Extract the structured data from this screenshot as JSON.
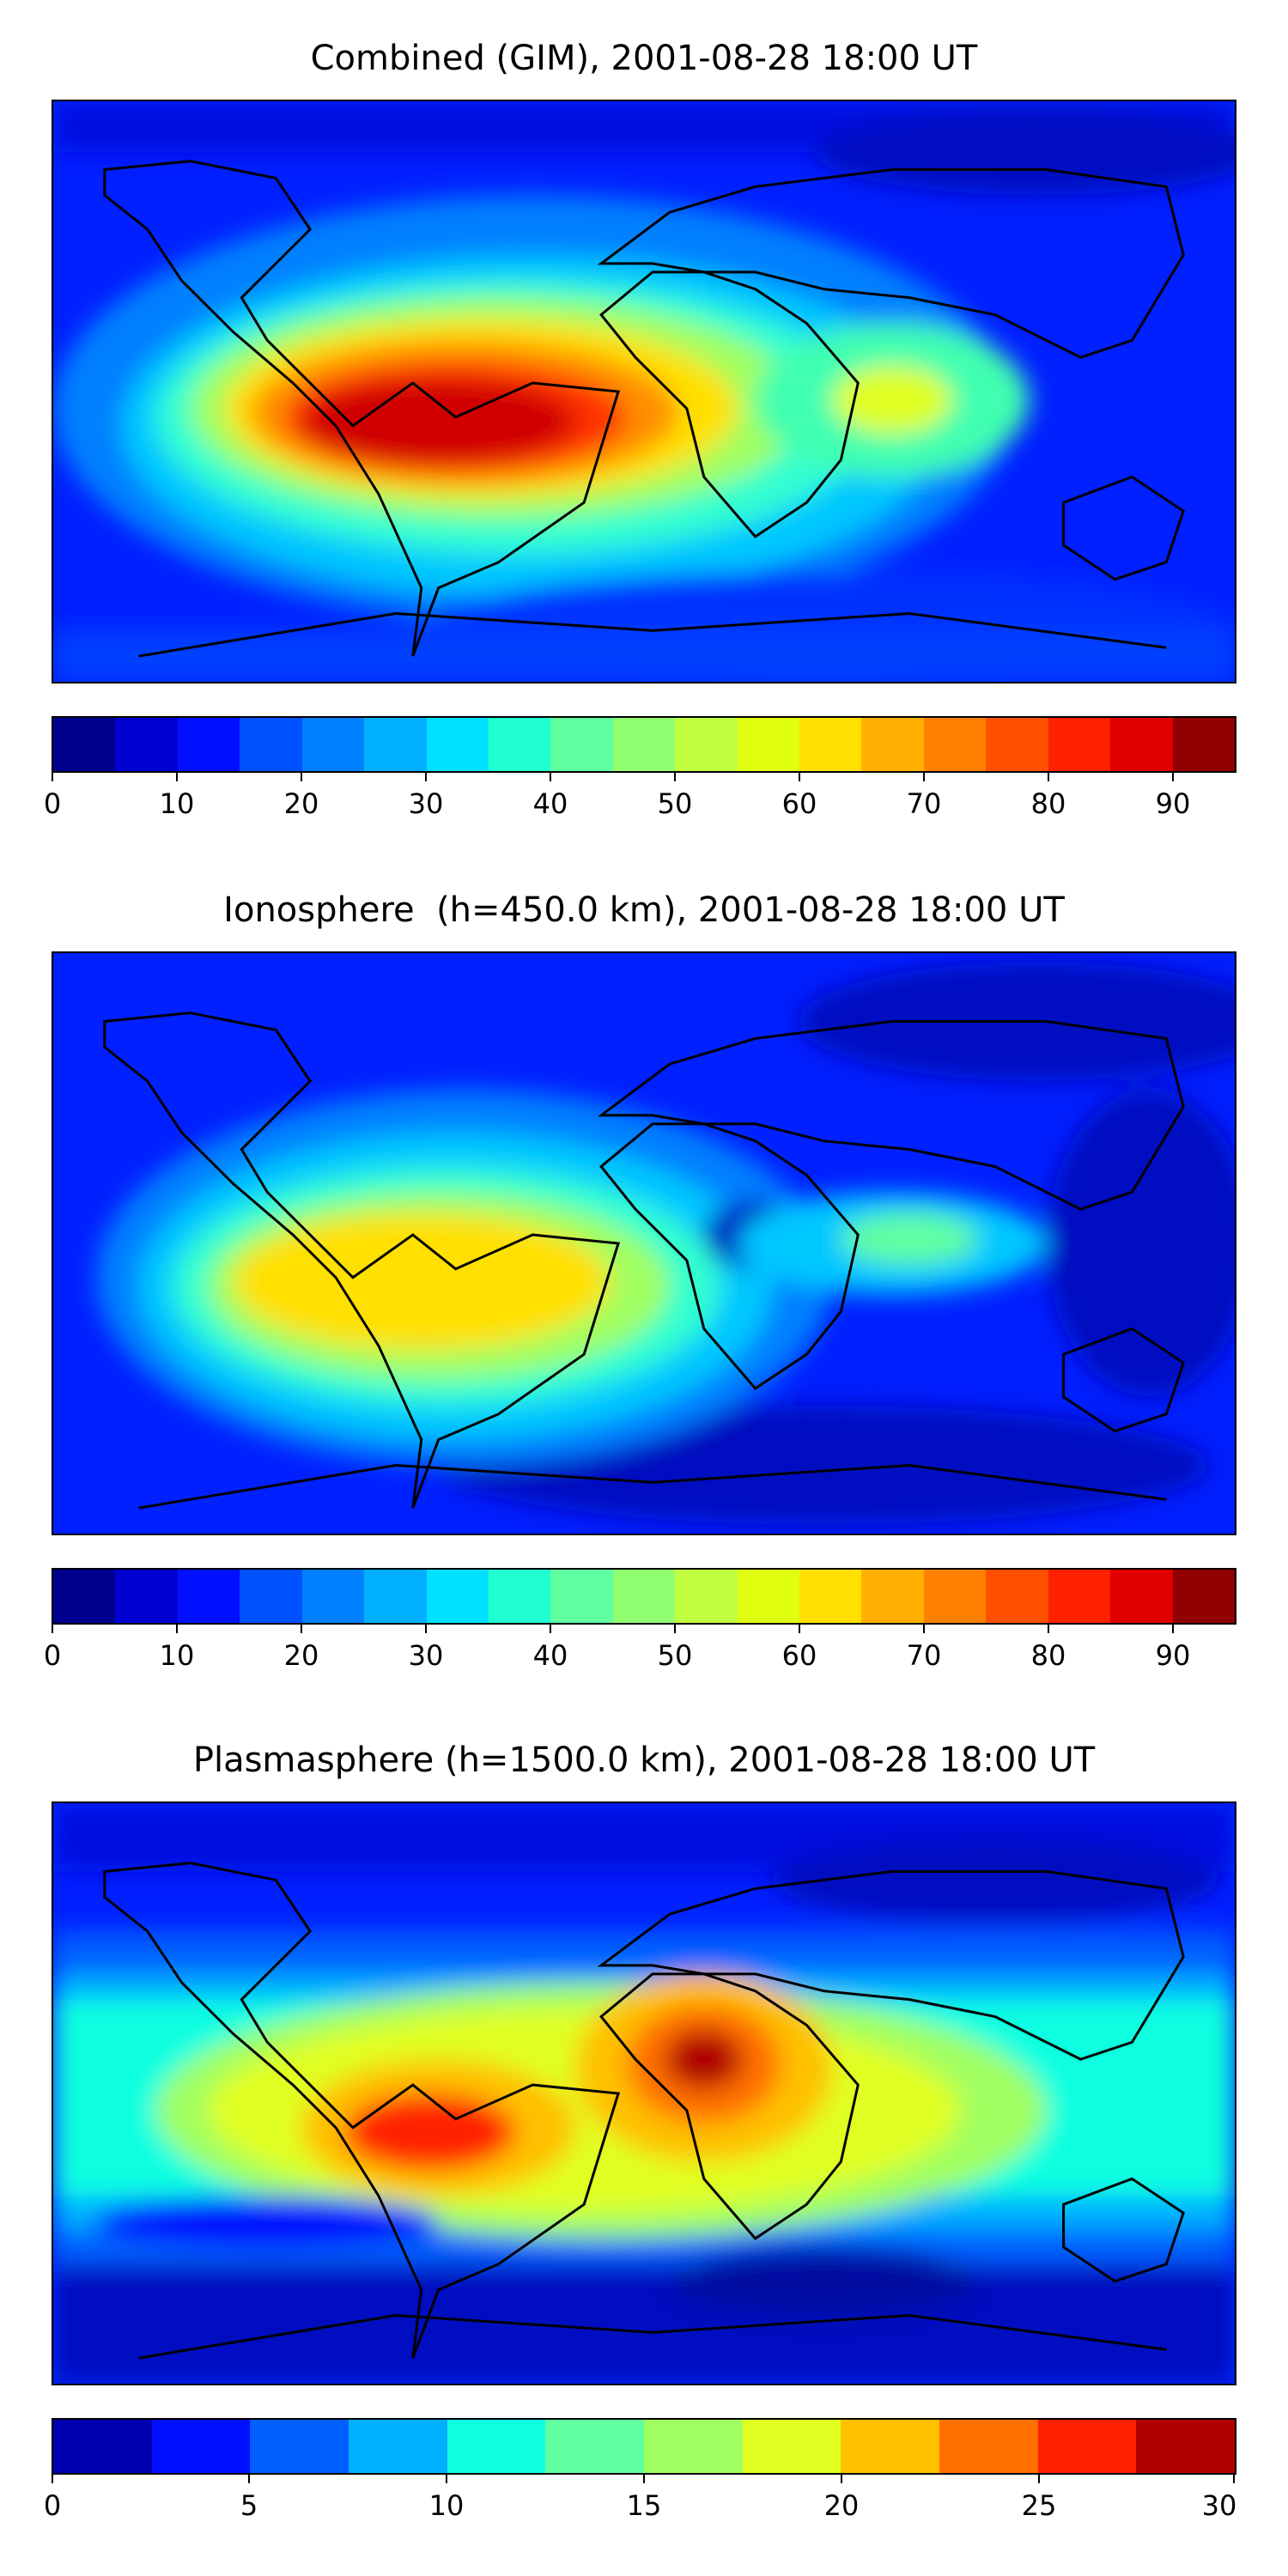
{
  "panels": [
    {
      "title": "Combined (GIM), 2001-08-28 18:00 UT",
      "colorbar": {
        "min": 0,
        "max": 95,
        "colors": [
          "#00008f",
          "#0000d0",
          "#0010ff",
          "#0050ff",
          "#0080ff",
          "#00b0ff",
          "#00e0ff",
          "#20ffd0",
          "#60ffa0",
          "#90ff70",
          "#c0ff40",
          "#e0ff10",
          "#ffe000",
          "#ffb000",
          "#ff8000",
          "#ff5000",
          "#ff2000",
          "#e00000",
          "#900000"
        ],
        "ticks": [
          "0",
          "10",
          "20",
          "30",
          "40",
          "50",
          "60",
          "70",
          "80",
          "90"
        ]
      }
    },
    {
      "title": "Ionosphere  (h=450.0 km), 2001-08-28 18:00 UT",
      "colorbar": {
        "min": 0,
        "max": 95,
        "colors": [
          "#00008f",
          "#0000d0",
          "#0010ff",
          "#0050ff",
          "#0080ff",
          "#00b0ff",
          "#00e0ff",
          "#20ffd0",
          "#60ffa0",
          "#90ff70",
          "#c0ff40",
          "#e0ff10",
          "#ffe000",
          "#ffb000",
          "#ff8000",
          "#ff5000",
          "#ff2000",
          "#e00000",
          "#900000"
        ],
        "ticks": [
          "0",
          "10",
          "20",
          "30",
          "40",
          "50",
          "60",
          "70",
          "80",
          "90"
        ]
      }
    },
    {
      "title": "Plasmasphere (h=1500.0 km), 2001-08-28 18:00 UT",
      "colorbar": {
        "min": 0,
        "max": 30,
        "colors": [
          "#0000b0",
          "#0010ff",
          "#0060ff",
          "#00b0ff",
          "#10ffe0",
          "#60ffa0",
          "#a0ff60",
          "#e0ff20",
          "#ffc000",
          "#ff7000",
          "#ff2000",
          "#b00000"
        ],
        "ticks": [
          "0",
          "5",
          "10",
          "15",
          "20",
          "25",
          "30"
        ]
      }
    }
  ]
}
